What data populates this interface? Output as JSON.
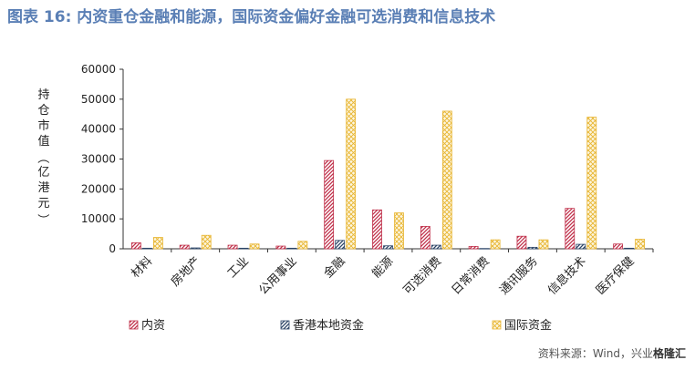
{
  "title": "图表 16: 内资重仓金融和能源，国际资金偏好金融可选消费和信息技术",
  "source": "资料来源：Wind，兴业",
  "watermark": "格隆汇",
  "colors": {
    "title": "#5a7fb5",
    "domestic": "#c0304a",
    "hk_local": "#2b4466",
    "international": "#e8b531"
  },
  "chart_data": {
    "type": "bar",
    "ylabel": "持仓市值（亿港元）",
    "xlabel": "",
    "ylim": [
      0,
      60000
    ],
    "yticks": [
      0,
      10000,
      20000,
      30000,
      40000,
      50000,
      60000
    ],
    "grid": false,
    "legend_position": "bottom",
    "categories": [
      "材料",
      "房地产",
      "工业",
      "公用事业",
      "金融",
      "能源",
      "可选消费",
      "日常消费",
      "通讯服务",
      "信息技术",
      "医疗保健"
    ],
    "series": [
      {
        "name": "内资",
        "values": [
          2000,
          1200,
          1200,
          900,
          29500,
          13000,
          7500,
          800,
          4200,
          13500,
          1600
        ]
      },
      {
        "name": "香港本地资金",
        "values": [
          200,
          300,
          200,
          200,
          2800,
          1000,
          1200,
          100,
          500,
          1500,
          200
        ]
      },
      {
        "name": "国际资金",
        "values": [
          3800,
          4500,
          1600,
          2500,
          50000,
          12000,
          46000,
          3000,
          3000,
          44000,
          3200
        ]
      }
    ]
  }
}
